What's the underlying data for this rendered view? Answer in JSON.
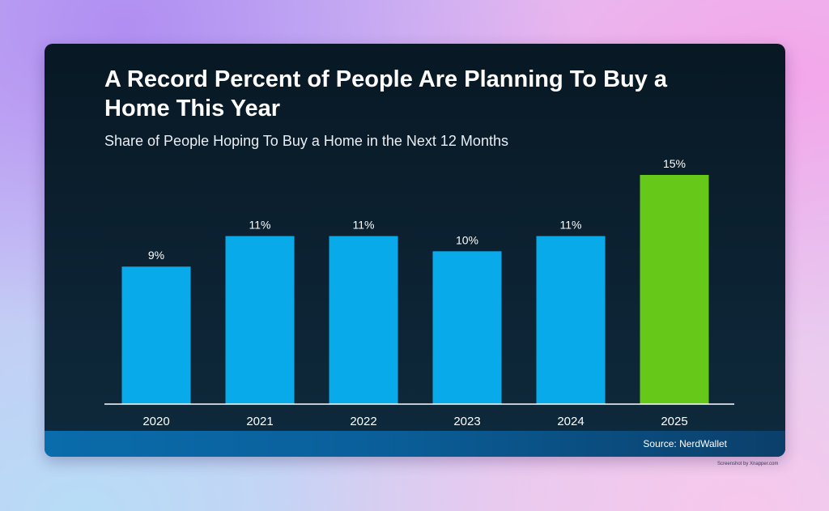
{
  "chart_data": {
    "type": "bar",
    "title": "A Record Percent of People Are Planning To Buy a Home This Year",
    "subtitle": "Share of People Hoping To Buy a Home in the Next 12 Months",
    "categories": [
      "2020",
      "2021",
      "2022",
      "2023",
      "2024",
      "2025"
    ],
    "values": [
      9,
      11,
      11,
      10,
      11,
      15
    ],
    "value_labels": [
      "9%",
      "11%",
      "11%",
      "10%",
      "11%",
      "15%"
    ],
    "bar_colors": [
      "#08aaea",
      "#08aaea",
      "#08aaea",
      "#08aaea",
      "#08aaea",
      "#66c91a"
    ],
    "ylim": [
      0,
      15
    ],
    "xlabel": "",
    "ylabel": "",
    "grid": false,
    "legend": "none",
    "source": "Source: NerdWallet"
  },
  "colors": {
    "bar": "#08aaea",
    "highlight": "#66c91a",
    "axis": "#ffffff",
    "text": "#ffffff"
  },
  "credit": "Screenshot by Xnapper.com"
}
